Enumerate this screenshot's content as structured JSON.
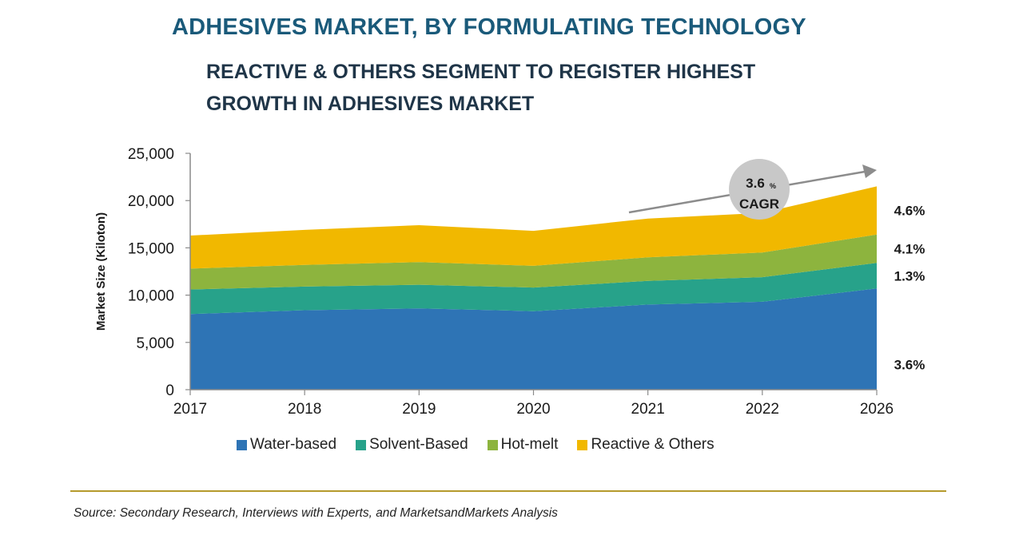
{
  "title": "ADHESIVES MARKET, BY FORMULATING TECHNOLOGY",
  "subtitle": "REACTIVE & OTHERS SEGMENT TO REGISTER HIGHEST GROWTH IN ADHESIVES MARKET",
  "source": "Source: Secondary Research, Interviews with Experts, and MarketsandMarkets Analysis",
  "colors": {
    "water_based": "#2e74b5",
    "solvent_based": "#27a28a",
    "hot_melt": "#8db43e",
    "reactive_others": "#f1b800",
    "cagr_circle": "#c8c8c8",
    "arrow": "#8c8c8c"
  },
  "cagr_badge": {
    "value": "3.6",
    "unit": "%",
    "label": "CAGR"
  },
  "chart_data": {
    "type": "area",
    "stacked": true,
    "categories": [
      "2017",
      "2018",
      "2019",
      "2020",
      "2021",
      "2022",
      "2026"
    ],
    "ylabel": "Market Size (Kiloton)",
    "xlabel": "",
    "ylim": [
      0,
      25000
    ],
    "yticks": [
      "0",
      "5,000",
      "10,000",
      "15,000",
      "20,000",
      "25,000"
    ],
    "series": [
      {
        "name": "Water-based",
        "values": [
          8000,
          8400,
          8600,
          8300,
          9000,
          9300,
          10700
        ],
        "cagr_label": "3.6%"
      },
      {
        "name": "Solvent-Based",
        "values": [
          2600,
          2500,
          2500,
          2500,
          2500,
          2600,
          2700
        ],
        "cagr_label": "1.3%"
      },
      {
        "name": "Hot-melt",
        "values": [
          2200,
          2300,
          2400,
          2300,
          2500,
          2600,
          3000
        ],
        "cagr_label": "4.1%"
      },
      {
        "name": "Reactive & Others",
        "values": [
          3500,
          3700,
          3900,
          3700,
          4100,
          4200,
          5100
        ],
        "cagr_label": "4.6%"
      }
    ]
  }
}
